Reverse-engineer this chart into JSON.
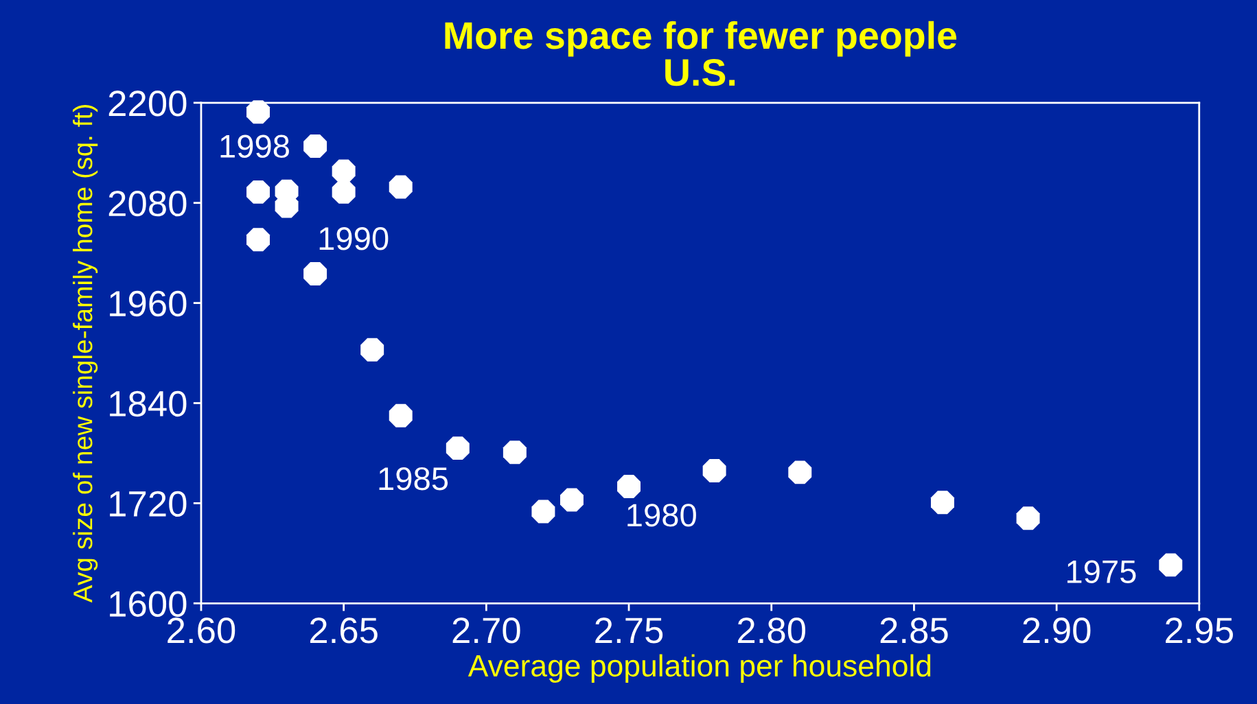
{
  "chart_data": {
    "type": "scatter",
    "title": "More space for fewer people\nU.S.",
    "xlabel": "Average population per household",
    "ylabel": "Avg size of new single-family home (sq. ft)",
    "x": [
      2.62,
      2.64,
      2.65,
      2.65,
      2.67,
      2.62,
      2.63,
      2.63,
      2.62,
      2.64,
      2.66,
      2.67,
      2.69,
      2.71,
      2.72,
      2.73,
      2.75,
      2.78,
      2.81,
      2.86,
      2.89,
      2.94
    ],
    "series": [
      {
        "color": "#ffffff",
        "values": [
          2189,
          2148,
          2118,
          2093,
          2099,
          2093,
          2094,
          2076,
          2036,
          1995,
          1904,
          1825,
          1786,
          1781,
          1710,
          1724,
          1740,
          1759,
          1757,
          1721,
          1702,
          1646
        ]
      }
    ],
    "marker": "circle",
    "xlim": [
      2.6,
      2.95
    ],
    "xticks": [
      {
        "value": 2.6,
        "label": "2.60"
      },
      {
        "value": 2.65,
        "label": "2.65"
      },
      {
        "value": 2.7,
        "label": "2.70"
      },
      {
        "value": 2.75,
        "label": "2.75"
      },
      {
        "value": 2.8,
        "label": "2.80"
      },
      {
        "value": 2.85,
        "label": "2.85"
      },
      {
        "value": 2.9,
        "label": "2.90"
      },
      {
        "value": 2.95,
        "label": "2.95"
      }
    ],
    "ylim": [
      1600,
      2200
    ],
    "yticks": [
      1600,
      1720,
      1840,
      1960,
      2080,
      2200
    ],
    "grid": false,
    "annotations": [
      {
        "text": "1998",
        "x": 2.62,
        "y": 2189
      },
      {
        "text": "1990",
        "x": 2.64,
        "y": 1995
      },
      {
        "text": "1985",
        "x": 2.69,
        "y": 1786
      },
      {
        "text": "1980",
        "x": 2.75,
        "y": 1740
      },
      {
        "text": "1975",
        "x": 2.94,
        "y": 1646
      }
    ]
  }
}
